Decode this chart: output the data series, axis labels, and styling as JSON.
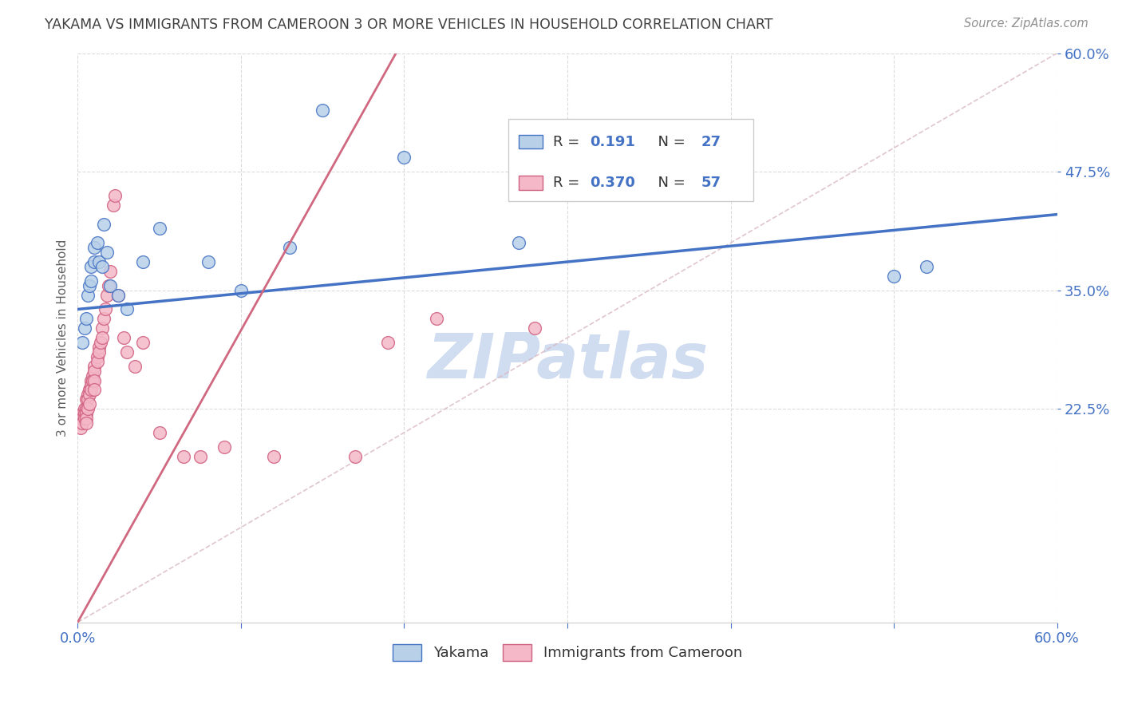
{
  "title": "YAKAMA VS IMMIGRANTS FROM CAMEROON 3 OR MORE VEHICLES IN HOUSEHOLD CORRELATION CHART",
  "source": "Source: ZipAtlas.com",
  "ylabel": "3 or more Vehicles in Household",
  "xmin": 0.0,
  "xmax": 0.6,
  "ymin": 0.0,
  "ymax": 0.6,
  "ytick_vals": [
    0.225,
    0.35,
    0.475,
    0.6
  ],
  "ytick_labels": [
    "22.5%",
    "35.0%",
    "47.5%",
    "60.0%"
  ],
  "xtick_vals": [
    0.0,
    0.1,
    0.2,
    0.3,
    0.4,
    0.5,
    0.6
  ],
  "xtick_labels": [
    "0.0%",
    "",
    "",
    "",
    "",
    "",
    "60.0%"
  ],
  "r_yakama": 0.191,
  "n_yakama": 27,
  "r_cameroon": 0.37,
  "n_cameroon": 57,
  "blue_fill": "#b8d0e8",
  "blue_edge": "#4472c4",
  "pink_fill": "#f4b8c8",
  "pink_edge": "#d06080",
  "blue_line": "#4472c4",
  "pink_line": "#d06880",
  "diag_color": "#d8b8c0",
  "watermark_color": "#d0ddf0",
  "grid_color": "#d8d8d8",
  "title_color": "#404040",
  "ylabel_color": "#606060",
  "tick_color": "#4472c4",
  "source_color": "#909090",
  "blue_line_start_y": 0.33,
  "blue_line_end_y": 0.43,
  "pink_line_start_y": 0.0,
  "pink_line_end_y": 0.6,
  "blue_scatter_x": [
    0.003,
    0.004,
    0.005,
    0.006,
    0.007,
    0.008,
    0.008,
    0.01,
    0.01,
    0.012,
    0.013,
    0.015,
    0.016,
    0.018,
    0.02,
    0.025,
    0.03,
    0.04,
    0.05,
    0.08,
    0.1,
    0.13,
    0.15,
    0.2,
    0.27,
    0.5,
    0.52
  ],
  "blue_scatter_y": [
    0.295,
    0.31,
    0.32,
    0.345,
    0.355,
    0.36,
    0.375,
    0.38,
    0.395,
    0.4,
    0.38,
    0.375,
    0.42,
    0.39,
    0.355,
    0.345,
    0.33,
    0.38,
    0.415,
    0.38,
    0.35,
    0.395,
    0.54,
    0.49,
    0.4,
    0.365,
    0.375
  ],
  "pink_scatter_x": [
    0.001,
    0.002,
    0.002,
    0.003,
    0.003,
    0.003,
    0.004,
    0.004,
    0.004,
    0.005,
    0.005,
    0.005,
    0.005,
    0.005,
    0.006,
    0.006,
    0.006,
    0.007,
    0.007,
    0.007,
    0.008,
    0.008,
    0.008,
    0.009,
    0.009,
    0.01,
    0.01,
    0.01,
    0.01,
    0.012,
    0.012,
    0.013,
    0.013,
    0.014,
    0.015,
    0.015,
    0.016,
    0.017,
    0.018,
    0.019,
    0.02,
    0.022,
    0.023,
    0.025,
    0.028,
    0.03,
    0.035,
    0.04,
    0.05,
    0.065,
    0.075,
    0.09,
    0.12,
    0.17,
    0.19,
    0.22,
    0.28
  ],
  "pink_scatter_y": [
    0.215,
    0.21,
    0.205,
    0.22,
    0.215,
    0.21,
    0.225,
    0.22,
    0.215,
    0.235,
    0.225,
    0.22,
    0.215,
    0.21,
    0.24,
    0.235,
    0.225,
    0.245,
    0.24,
    0.23,
    0.255,
    0.25,
    0.245,
    0.26,
    0.255,
    0.27,
    0.265,
    0.255,
    0.245,
    0.28,
    0.275,
    0.29,
    0.285,
    0.295,
    0.31,
    0.3,
    0.32,
    0.33,
    0.345,
    0.355,
    0.37,
    0.44,
    0.45,
    0.345,
    0.3,
    0.285,
    0.27,
    0.295,
    0.2,
    0.175,
    0.175,
    0.185,
    0.175,
    0.175,
    0.295,
    0.32,
    0.31
  ]
}
